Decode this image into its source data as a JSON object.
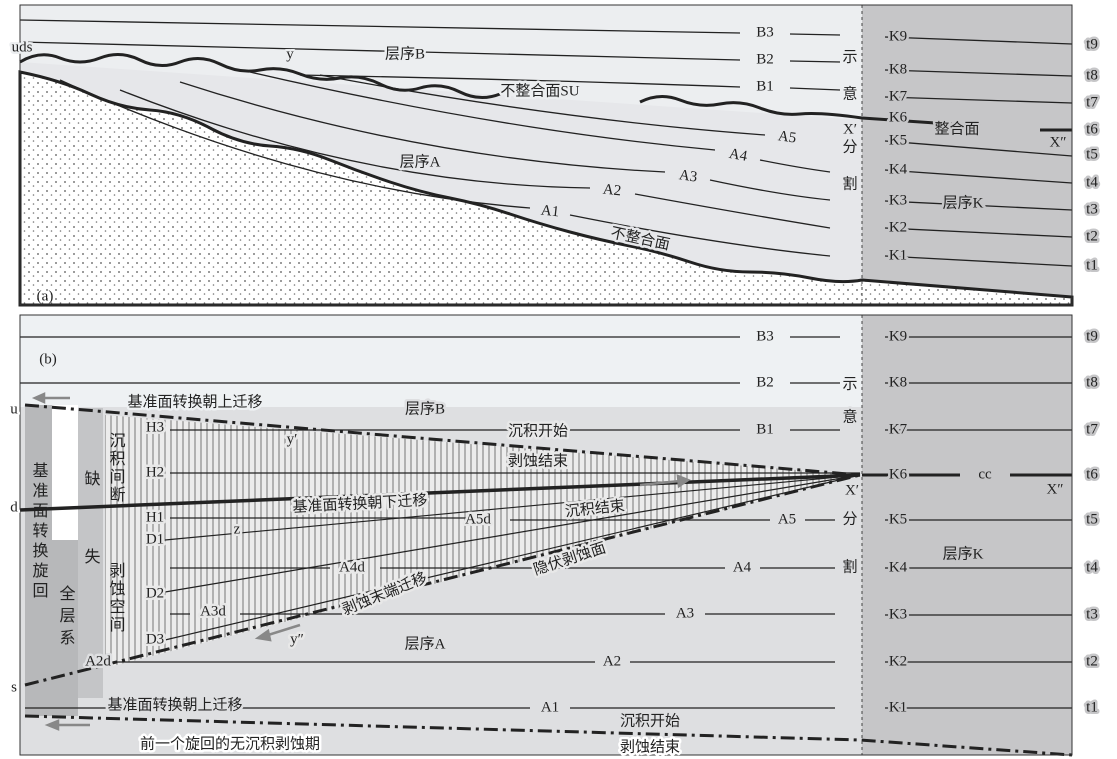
{
  "panel_a": {
    "panel_label": "(a)",
    "labels": [
      "uds",
      "y",
      "层序B",
      "B3",
      "B2",
      "B1",
      "示",
      "意",
      "X′",
      "分",
      "割",
      "K9",
      "K8",
      "K7",
      "K6",
      "K5",
      "K4",
      "K3",
      "K2",
      "K1",
      "t9",
      "t8",
      "t7",
      "t6",
      "t5",
      "t4",
      "t3",
      "t2",
      "t1",
      "不整合面SU",
      "整合面",
      "X″",
      "层序A",
      "A5",
      "A4",
      "A3",
      "A2",
      "A1",
      "不整合面",
      "层序K"
    ]
  },
  "panel_b": {
    "panel_label": "(b)",
    "labels": [
      "B3",
      "B2",
      "B1",
      "示",
      "意",
      "X′",
      "分",
      "割",
      "K9",
      "K8",
      "K7",
      "K6",
      "K5",
      "K4",
      "K3",
      "K2",
      "K1",
      "t9",
      "t8",
      "t7",
      "t6",
      "t5",
      "t4",
      "t3",
      "t2",
      "t1",
      "cc",
      "X″",
      "层序K",
      "u",
      "d",
      "s",
      "基准面转换朝上迁移",
      "层序B",
      "沉积开始",
      "剥蚀结束",
      "基准面转换朝下迁移",
      "沉积结束",
      "A5d",
      "A5",
      "A4d",
      "A4",
      "隐伏剥蚀面",
      "剥蚀末端迁移",
      "A3d",
      "A3",
      "y′",
      "y″",
      "z",
      "H3",
      "H2",
      "H1",
      "D1",
      "D2",
      "D3",
      "A2d",
      "A2",
      "A1",
      "层序A",
      "基准面转换朝上迁移",
      "沉积开始",
      "剥蚀结束",
      "前一个旋回的无沉积剥蚀期"
    ],
    "columns": [
      "基准面转换旋回",
      "全层系",
      "缺失",
      "沉积间断",
      "剥蚀空间"
    ]
  }
}
